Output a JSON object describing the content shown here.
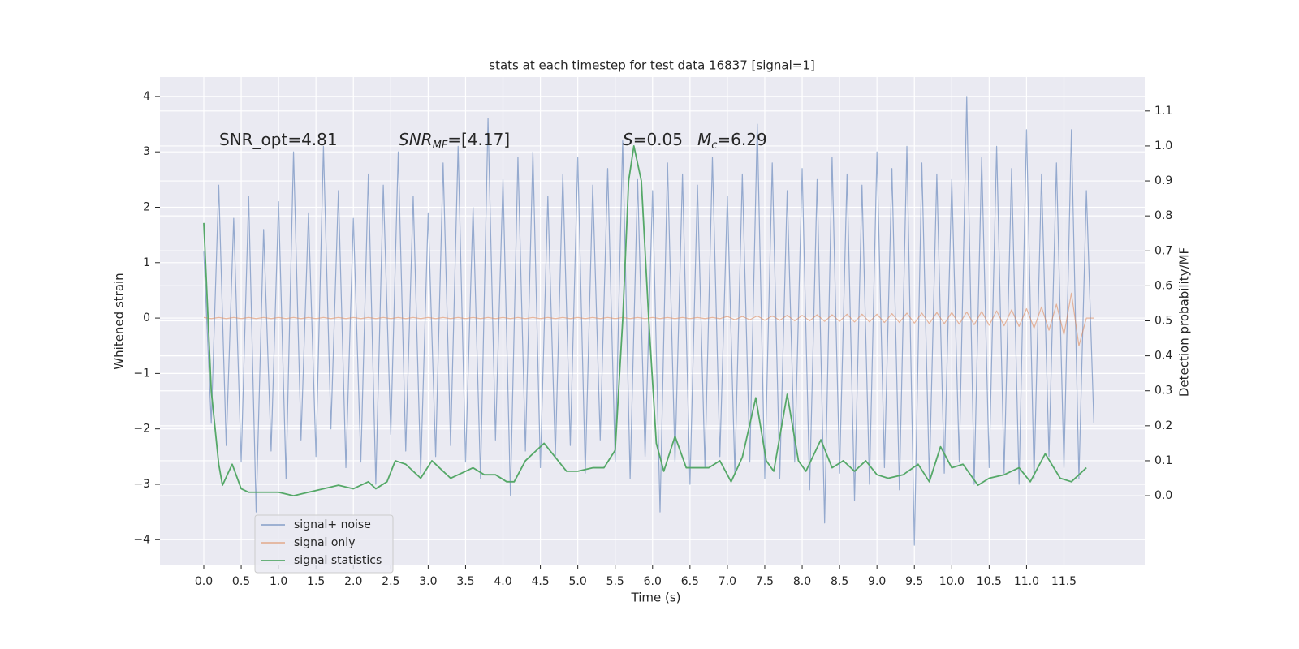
{
  "chart_data": {
    "type": "line",
    "title": "stats at each timestep for test data 16837 [signal=1]",
    "xlabel": "Time (s)",
    "ylabel": "Whitened strain",
    "y2label": "Detection probability/MF",
    "x": [
      0,
      0.1,
      0.2,
      0.3,
      0.4,
      0.5,
      0.6,
      0.7,
      0.8,
      0.9,
      1,
      1.1,
      1.2,
      1.3,
      1.4,
      1.5,
      1.6,
      1.7,
      1.8,
      1.9,
      2,
      2.1,
      2.2,
      2.3,
      2.4,
      2.5,
      2.6,
      2.7,
      2.8,
      2.9,
      3,
      3.1,
      3.2,
      3.3,
      3.4,
      3.5,
      3.6,
      3.7,
      3.8,
      3.9,
      4,
      4.1,
      4.2,
      4.3,
      4.4,
      4.5,
      4.6,
      4.7,
      4.8,
      4.9,
      5,
      5.1,
      5.2,
      5.3,
      5.4,
      5.5,
      5.6,
      5.7,
      5.8,
      5.9,
      6,
      6.1,
      6.2,
      6.3,
      6.4,
      6.5,
      6.6,
      6.7,
      6.8,
      6.9,
      7,
      7.1,
      7.2,
      7.3,
      7.4,
      7.5,
      7.6,
      7.7,
      7.8,
      7.9,
      8,
      8.1,
      8.2,
      8.3,
      8.4,
      8.5,
      8.6,
      8.7,
      8.8,
      8.9,
      9,
      9.1,
      9.2,
      9.3,
      9.4,
      9.5,
      9.6,
      9.7,
      9.8,
      9.9,
      10,
      10.1,
      10.2,
      10.3,
      10.4,
      10.5,
      10.6,
      10.7,
      10.8,
      10.9,
      11,
      11.1,
      11.2,
      11.3,
      11.4,
      11.5,
      11.6,
      11.7,
      11.8,
      11.9
    ],
    "series": [
      {
        "name": "signal+ noise",
        "color": "#4c72b0",
        "values": [
          1.2,
          -1.9,
          2.4,
          -2.3,
          1.8,
          -2.6,
          2.2,
          -3.5,
          1.6,
          -2.4,
          2.1,
          -2.9,
          3.0,
          -2.2,
          1.9,
          -2.5,
          3.1,
          -2.0,
          2.3,
          -2.7,
          1.8,
          -2.6,
          2.6,
          -3.0,
          2.4,
          -2.1,
          3.0,
          -2.4,
          2.2,
          -2.8,
          1.9,
          -2.5,
          2.8,
          -2.3,
          3.1,
          -2.6,
          2.0,
          -2.9,
          3.6,
          -2.2,
          2.5,
          -3.2,
          2.9,
          -2.4,
          3.0,
          -2.7,
          2.2,
          -2.5,
          2.6,
          -2.3,
          2.9,
          -2.8,
          2.4,
          -2.2,
          2.7,
          -2.6,
          3.2,
          -2.9,
          2.5,
          -2.5,
          2.3,
          -3.5,
          2.8,
          -2.6,
          2.6,
          -3.0,
          2.4,
          -2.7,
          2.9,
          -2.5,
          2.2,
          -2.8,
          2.6,
          -2.6,
          3.5,
          -2.9,
          2.8,
          -2.9,
          2.3,
          -2.6,
          2.7,
          -3.1,
          2.5,
          -3.7,
          2.9,
          -2.8,
          2.6,
          -3.3,
          2.4,
          -3.0,
          3.0,
          -2.7,
          2.7,
          -3.1,
          3.1,
          -4.1,
          2.8,
          -2.9,
          2.6,
          -2.8,
          2.5,
          -2.6,
          4.0,
          -3.0,
          2.9,
          -2.7,
          3.1,
          -2.8,
          2.7,
          -3.0,
          3.4,
          -2.9,
          2.6,
          -2.5,
          2.8,
          -2.7,
          3.4,
          -2.9,
          2.3,
          -1.9
        ]
      },
      {
        "name": "signal only",
        "color": "#dd8452",
        "values": [
          0.01,
          -0.01,
          0.01,
          -0.01,
          0.01,
          -0.01,
          0.01,
          -0.01,
          0.01,
          -0.01,
          0.01,
          -0.01,
          0.01,
          -0.01,
          0.01,
          -0.01,
          0.01,
          -0.01,
          0.01,
          -0.01,
          0.01,
          -0.01,
          0.01,
          -0.01,
          0.01,
          -0.01,
          0.01,
          -0.01,
          0.01,
          -0.01,
          0.01,
          -0.01,
          0.01,
          -0.01,
          0.01,
          -0.01,
          0.01,
          -0.01,
          0.01,
          -0.01,
          0.01,
          -0.01,
          0.01,
          -0.01,
          0.01,
          -0.01,
          0.01,
          -0.01,
          0.01,
          -0.01,
          0.01,
          -0.01,
          0.01,
          -0.01,
          0.01,
          -0.01,
          0.01,
          -0.01,
          0.01,
          -0.01,
          0.01,
          -0.01,
          0.01,
          -0.01,
          0.01,
          -0.01,
          0.01,
          -0.01,
          0.01,
          -0.01,
          0.03,
          -0.03,
          0.03,
          -0.03,
          0.04,
          -0.04,
          0.04,
          -0.04,
          0.05,
          -0.05,
          0.05,
          -0.05,
          0.06,
          -0.06,
          0.06,
          -0.06,
          0.07,
          -0.07,
          0.07,
          -0.07,
          0.07,
          -0.08,
          0.08,
          -0.08,
          0.09,
          -0.09,
          0.09,
          -0.1,
          0.1,
          -0.1,
          0.1,
          -0.11,
          0.11,
          -0.12,
          0.12,
          -0.13,
          0.13,
          -0.14,
          0.15,
          -0.15,
          0.17,
          -0.18,
          0.2,
          -0.22,
          0.25,
          -0.3,
          0.45,
          -0.5,
          0,
          0
        ]
      },
      {
        "name": "signal statistics",
        "color": "#55a868",
        "axis": "y2",
        "x": [
          0,
          0.1,
          0.2,
          0.25,
          0.38,
          0.5,
          0.6,
          0.8,
          1.0,
          1.2,
          1.4,
          1.6,
          1.8,
          2.0,
          2.2,
          2.3,
          2.45,
          2.56,
          2.7,
          2.9,
          3.05,
          3.15,
          3.3,
          3.5,
          3.6,
          3.75,
          3.9,
          4.05,
          4.15,
          4.3,
          4.55,
          4.7,
          4.85,
          5.0,
          5.2,
          5.35,
          5.5,
          5.6,
          5.68,
          5.75,
          5.85,
          5.95,
          6.05,
          6.15,
          6.3,
          6.45,
          6.6,
          6.75,
          6.9,
          7.05,
          7.2,
          7.38,
          7.52,
          7.62,
          7.8,
          7.95,
          8.05,
          8.25,
          8.4,
          8.55,
          8.7,
          8.85,
          9.0,
          9.15,
          9.35,
          9.55,
          9.7,
          9.85,
          10.0,
          10.15,
          10.35,
          10.5,
          10.7,
          10.9,
          11.05,
          11.25,
          11.45,
          11.6,
          11.8
        ],
        "values": [
          0.78,
          0.3,
          0.09,
          0.03,
          0.09,
          0.02,
          0.01,
          0.01,
          0.01,
          0.0,
          0.01,
          0.02,
          0.03,
          0.02,
          0.04,
          0.02,
          0.04,
          0.1,
          0.09,
          0.05,
          0.1,
          0.08,
          0.05,
          0.07,
          0.08,
          0.06,
          0.06,
          0.04,
          0.04,
          0.1,
          0.15,
          0.11,
          0.07,
          0.07,
          0.08,
          0.08,
          0.13,
          0.5,
          0.9,
          1.0,
          0.9,
          0.5,
          0.15,
          0.07,
          0.17,
          0.08,
          0.08,
          0.08,
          0.1,
          0.04,
          0.11,
          0.28,
          0.1,
          0.07,
          0.29,
          0.1,
          0.07,
          0.16,
          0.08,
          0.1,
          0.07,
          0.1,
          0.06,
          0.05,
          0.06,
          0.09,
          0.04,
          0.14,
          0.08,
          0.09,
          0.03,
          0.05,
          0.06,
          0.08,
          0.04,
          0.12,
          0.05,
          0.04,
          0.08
        ]
      }
    ],
    "xlim": [
      -0.586,
      12.58
    ],
    "ylim": [
      -4.45,
      4.35
    ],
    "y2lim": [
      -0.197,
      1.197
    ],
    "xticks": [
      {
        "value": 0,
        "label": "0.0"
      },
      {
        "value": 0.5,
        "label": "0.5"
      },
      {
        "value": 1,
        "label": "1.0"
      },
      {
        "value": 1.5,
        "label": "1.5"
      },
      {
        "value": 2,
        "label": "2.0"
      },
      {
        "value": 2.5,
        "label": "2.5"
      },
      {
        "value": 3,
        "label": "3.0"
      },
      {
        "value": 3.5,
        "label": "3.5"
      },
      {
        "value": 4,
        "label": "4.0"
      },
      {
        "value": 4.5,
        "label": "4.5"
      },
      {
        "value": 5,
        "label": "5.0"
      },
      {
        "value": 5.5,
        "label": "5.5"
      },
      {
        "value": 6,
        "label": "6.0"
      },
      {
        "value": 6.5,
        "label": "6.5"
      },
      {
        "value": 7,
        "label": "7.0"
      },
      {
        "value": 7.5,
        "label": "7.5"
      },
      {
        "value": 8,
        "label": "8.0"
      },
      {
        "value": 8.5,
        "label": "8.5"
      },
      {
        "value": 9,
        "label": "9.0"
      },
      {
        "value": 9.5,
        "label": "9.5"
      },
      {
        "value": 10,
        "label": "10.0"
      },
      {
        "value": 10.5,
        "label": "10.5"
      },
      {
        "value": 11,
        "label": "11.0"
      },
      {
        "value": 11.5,
        "label": "11.5"
      }
    ],
    "yticks": [
      {
        "value": -4,
        "label": "−4"
      },
      {
        "value": -3,
        "label": "−3"
      },
      {
        "value": -2,
        "label": "−2"
      },
      {
        "value": -1,
        "label": "−1"
      },
      0,
      1,
      2,
      3,
      4
    ],
    "y2ticks": [
      {
        "value": 0,
        "label": "0.0"
      },
      0.1,
      0.2,
      0.3,
      0.4,
      0.5,
      0.6,
      0.7,
      0.8,
      0.9,
      {
        "value": 1,
        "label": "1.0"
      },
      1.1
    ],
    "grid": true,
    "legend": "lower left",
    "annotations": [
      [
        {
          "text": "SNR_opt=4.81"
        }
      ],
      [
        {
          "text": "SNR",
          "italic": true
        },
        {
          "text": "MF",
          "italic": true,
          "sub": true
        },
        {
          "text": "=[4.17]"
        }
      ],
      [
        {
          "text": "S",
          "italic": true
        },
        {
          "text": "=0.05"
        }
      ],
      [
        {
          "text": "M",
          "italic": true
        },
        {
          "text": "c",
          "italic": true,
          "sub": true
        },
        {
          "text": "=6.29"
        }
      ]
    ]
  }
}
